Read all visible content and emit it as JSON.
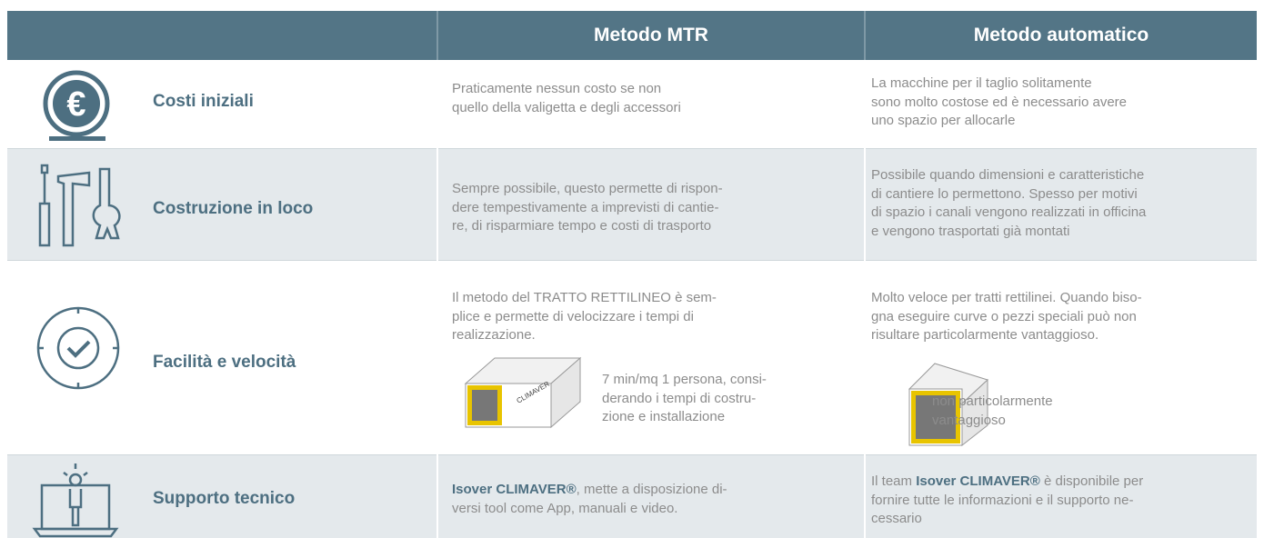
{
  "table": {
    "headers": [
      "Metodo MTR",
      "Metodo automatico"
    ],
    "rows": [
      {
        "label": "Costi iniziali",
        "mtr": [
          "Praticamente nessun costo se non",
          "quello della valigetta e degli accessori"
        ],
        "auto": [
          "La macchine per il taglio solitamente",
          "sono molto costose ed è necessario avere",
          "uno spazio per allocarle"
        ]
      },
      {
        "label": "Costruzione in loco",
        "mtr": [
          "Sempre possibile, questo permette di rispon-",
          "dere tempestivamente a imprevisti di cantie-",
          "re, di risparmiare tempo e costi di trasporto"
        ],
        "auto": [
          "Possibile quando dimensioni e caratteristiche",
          "di cantiere lo permettono. Spesso per motivi",
          "di spazio i canali vengono realizzati in officina",
          "e vengono trasportati già montati"
        ]
      },
      {
        "label": "Facilità e velocità",
        "mtr": [
          "Il metodo del TRATTO RETTILINEO è sem-",
          "plice e permette di velocizzare i tempi di",
          "realizzazione."
        ],
        "auto": [
          "Molto veloce per tratti rettilinei. Quando biso-",
          "gna eseguire curve o pezzi speciali può non",
          "risultare particolarmente vantaggioso."
        ],
        "mtr_note": [
          "7 min/mq 1 persona, consi-",
          "derando i tempi di costru-",
          "zione e installazione"
        ],
        "auto_note": [
          "non particolarmente",
          "vantaggioso"
        ]
      },
      {
        "label": "Supporto tecnico",
        "mtr": [
          [
            {
              "text": "Isover CLIMAVER®",
              "strong": true
            },
            {
              "text": ", mette a disposizione di-"
            }
          ],
          "versi tool come App, manuali e video."
        ],
        "auto": [
          [
            {
              "text": "Il team "
            },
            {
              "text": "Isover CLIMAVER®",
              "strong": true
            },
            {
              "text": " è disponibile per"
            }
          ],
          "fornire tutte le informazioni e il supporto ne-",
          "cessario"
        ]
      }
    ]
  }
}
